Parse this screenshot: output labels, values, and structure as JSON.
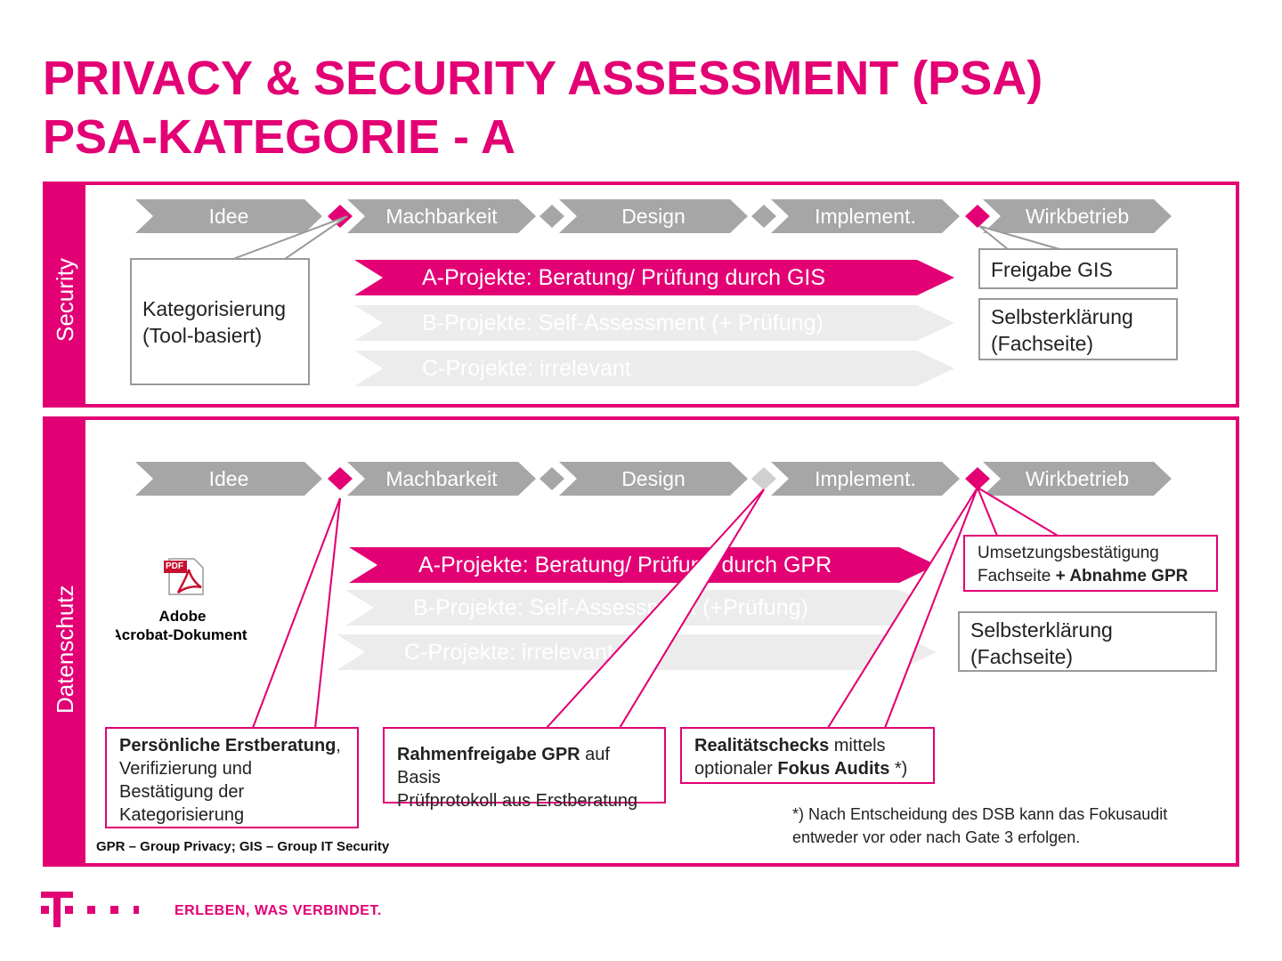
{
  "title": {
    "line1": "PRIVACY & SECURITY ASSESSMENT (PSA)",
    "line2": "PSA-KATEGORIE - A"
  },
  "phases": [
    "Idee",
    "Machbarkeit",
    "Design",
    "Implement.",
    "Wirkbetrieb"
  ],
  "security": {
    "side_label": "Security",
    "box_kategorisierung": [
      "Kategorisierung",
      "(Tool-basiert)"
    ],
    "a_projekte": "A-Projekte: Beratung/ Prüfung durch GIS",
    "b_projekte": "B-Projekte: Self-Assessment (+ Prüfung)",
    "c_projekte": "C-Projekte: irrelevant",
    "box_freigabe": "Freigabe GIS",
    "box_selbst": [
      "Selbsterklärung",
      "(Fachseite)"
    ]
  },
  "datenschutz": {
    "side_label": "Datenschutz",
    "pdf_caption": [
      "Adobe",
      "Acrobat-Dokument"
    ],
    "pdf_badge": "PDF",
    "a_projekte": "A-Projekte: Beratung/ Prüfung durch GPR",
    "b_projekte": "B-Projekte: Self-Assessment (+Prüfung)",
    "c_projekte": "C-Projekte: irrelevant",
    "box_umsetzung_line1": "Umsetzungsbestätigung",
    "box_umsetzung_line2a": "Fachseite ",
    "box_umsetzung_line2b": "+ Abnahme GPR",
    "box_selbst": [
      "Selbsterklärung",
      "(Fachseite)"
    ],
    "box_erstberatung_bold": "Persönliche Erstberatung",
    "box_erstberatung_rest": [
      ",",
      "Verifizierung und",
      "Bestätigung der",
      "Kategorisierung"
    ],
    "box_rahmen_bold": "Rahmenfreigabe GPR",
    "box_rahmen_rest1": " auf Basis",
    "box_rahmen_line2": "Prüfprotokoll aus Erstberatung",
    "box_realitaet_bold": "Realitätschecks",
    "box_realitaet_rest1": " mittels",
    "box_realitaet_line2a": "optionaler ",
    "box_realitaet_line2b": "Fokus Audits",
    "box_realitaet_line2c": " *)",
    "footnote": [
      "*) Nach Entscheidung des DSB kann das Fokusaudit",
      "entweder vor oder nach Gate 3 erfolgen."
    ],
    "legend": "GPR – Group Privacy; GIS – Group IT Security"
  },
  "footer": {
    "tagline": "ERLEBEN, WAS VERBINDET.",
    "logo": "T"
  },
  "colors": {
    "magenta": "#e20074",
    "grey": "#a6a6a6",
    "light_grey": "#ececec"
  }
}
